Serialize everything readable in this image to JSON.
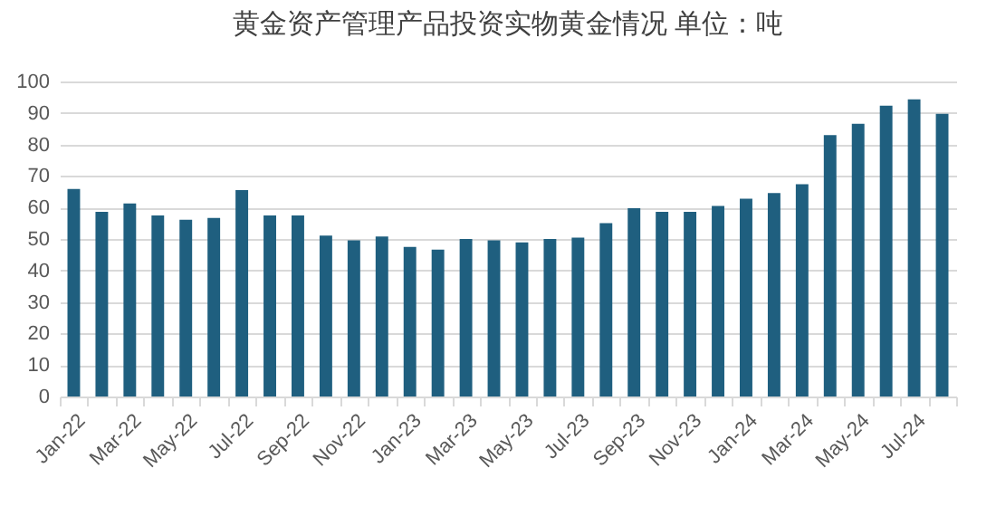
{
  "chart_data": {
    "type": "bar",
    "title": "黄金资产管理产品投资实物黄金情况 单位：吨",
    "categories": [
      "Jan-22",
      null,
      "Mar-22",
      null,
      "May-22",
      null,
      "Jul-22",
      null,
      "Sep-22",
      null,
      "Nov-22",
      null,
      "Jan-23",
      null,
      "Mar-23",
      null,
      "May-23",
      null,
      "Jul-23",
      null,
      "Sep-23",
      null,
      "Nov-23",
      null,
      "Jan-24",
      null,
      "Mar-24",
      null,
      "May-24",
      null,
      "Jul-24",
      null
    ],
    "values": [
      65.9,
      58.6,
      61.3,
      57.5,
      56.1,
      56.7,
      65.5,
      57.5,
      57.5,
      51.1,
      49.6,
      50.8,
      47.5,
      46.6,
      50.0,
      49.6,
      48.9,
      50.0,
      50.4,
      55.0,
      59.8,
      58.6,
      58.6,
      60.5,
      62.8,
      64.6,
      67.4,
      83.0,
      86.6,
      92.3,
      94.3,
      89.7
    ],
    "color": "#1f5f7f",
    "ylim": [
      0,
      100
    ],
    "yticks": [
      0,
      10,
      20,
      30,
      40,
      50,
      60,
      70,
      80,
      90,
      100
    ],
    "grid": "y"
  }
}
